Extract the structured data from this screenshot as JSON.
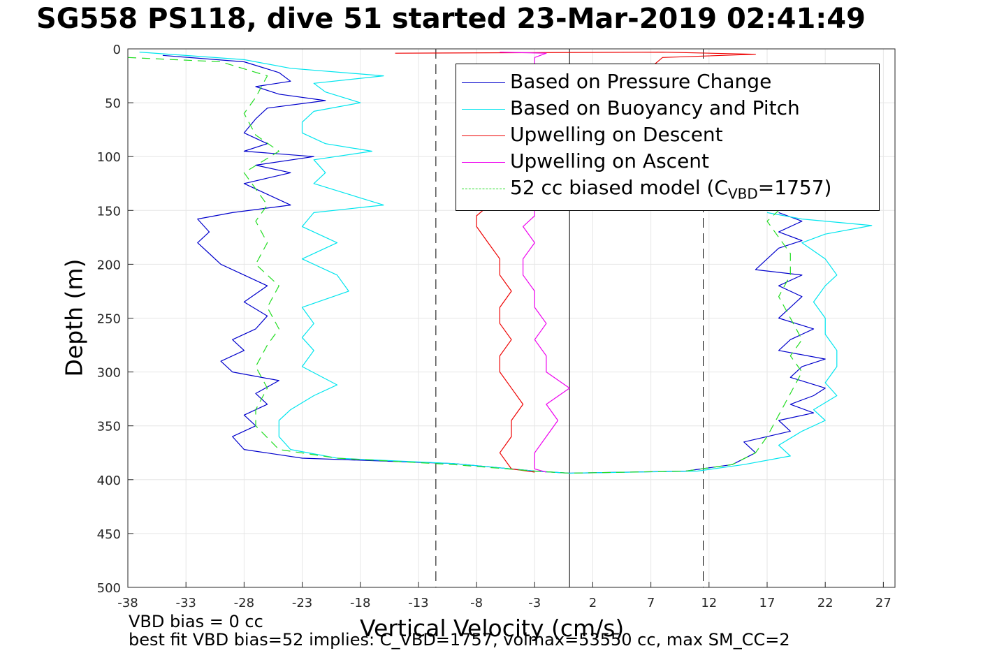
{
  "title": "SG558 PS118, dive 51 started 23-Mar-2019 02:41:49",
  "footer": {
    "line1": "VBD bias = 0 cc",
    "line2": "best fit VBD bias=52 implies: C_VBD=1757, volmax=53550 cc, max SM_CC=2"
  },
  "chart_data": {
    "type": "line",
    "xlabel": "Vertical Velocity (cm/s)",
    "ylabel": "Depth (m)",
    "xlim": [
      -38,
      28
    ],
    "ylim": [
      0,
      500
    ],
    "y_reversed": true,
    "grid": true,
    "xticks": [
      -38,
      -33,
      -28,
      -23,
      -18,
      -13,
      -8,
      -3,
      2,
      7,
      12,
      17,
      22,
      27
    ],
    "yticks": [
      0,
      50,
      100,
      150,
      200,
      250,
      300,
      350,
      400,
      450,
      500
    ],
    "legend_position": "top-right",
    "reference_lines": [
      {
        "x": -11.5,
        "style": "dashed",
        "color": "#000000"
      },
      {
        "x": 0,
        "style": "solid",
        "color": "#000000"
      },
      {
        "x": 11.5,
        "style": "dashed",
        "color": "#000000"
      }
    ],
    "series": [
      {
        "name": "Based on Pressure Change",
        "color": "#0000cc",
        "style": "solid",
        "points": [
          [
            -35,
            6
          ],
          [
            -28,
            12
          ],
          [
            -25,
            22
          ],
          [
            -24,
            30
          ],
          [
            -27,
            35
          ],
          [
            -25,
            42
          ],
          [
            -21,
            48
          ],
          [
            -26,
            55
          ],
          [
            -27,
            65
          ],
          [
            -28,
            78
          ],
          [
            -26,
            88
          ],
          [
            -28,
            95
          ],
          [
            -22,
            100
          ],
          [
            -27,
            108
          ],
          [
            -24,
            115
          ],
          [
            -28,
            125
          ],
          [
            -26,
            135
          ],
          [
            -24,
            145
          ],
          [
            -29,
            152
          ],
          [
            -32,
            158
          ],
          [
            -31,
            170
          ],
          [
            -32,
            180
          ],
          [
            -31,
            190
          ],
          [
            -30,
            200
          ],
          [
            -28,
            210
          ],
          [
            -26,
            220
          ],
          [
            -28,
            235
          ],
          [
            -26,
            248
          ],
          [
            -27,
            260
          ],
          [
            -29,
            270
          ],
          [
            -28,
            280
          ],
          [
            -30,
            290
          ],
          [
            -29,
            300
          ],
          [
            -25,
            308
          ],
          [
            -27,
            320
          ],
          [
            -26,
            330
          ],
          [
            -28,
            340
          ],
          [
            -27,
            350
          ],
          [
            -29,
            360
          ],
          [
            -28,
            372
          ],
          [
            -23,
            380
          ],
          [
            -10,
            385
          ],
          [
            -3,
            392
          ],
          [
            0,
            394
          ],
          [
            0,
            394
          ],
          [
            10,
            392
          ],
          [
            14,
            386
          ],
          [
            16,
            375
          ],
          [
            15,
            365
          ],
          [
            19,
            355
          ],
          [
            18,
            345
          ],
          [
            21,
            338
          ],
          [
            19,
            330
          ],
          [
            21,
            322
          ],
          [
            22,
            315
          ],
          [
            19,
            305
          ],
          [
            20,
            295
          ],
          [
            22,
            288
          ],
          [
            18,
            280
          ],
          [
            19,
            270
          ],
          [
            21,
            260
          ],
          [
            18,
            250
          ],
          [
            19,
            240
          ],
          [
            20,
            230
          ],
          [
            18,
            220
          ],
          [
            20,
            210
          ],
          [
            16,
            205
          ],
          [
            17,
            195
          ],
          [
            18,
            185
          ],
          [
            20,
            178
          ],
          [
            18,
            170
          ],
          [
            20,
            160
          ],
          [
            18,
            152
          ]
        ]
      },
      {
        "name": "Based on Buoyancy and Pitch",
        "color": "#00e5ee",
        "style": "solid",
        "points": [
          [
            -37,
            3
          ],
          [
            -28,
            10
          ],
          [
            -24,
            18
          ],
          [
            -16,
            25
          ],
          [
            -22,
            32
          ],
          [
            -21,
            40
          ],
          [
            -18,
            50
          ],
          [
            -22,
            58
          ],
          [
            -23,
            68
          ],
          [
            -23,
            78
          ],
          [
            -21,
            88
          ],
          [
            -17,
            95
          ],
          [
            -22,
            103
          ],
          [
            -21,
            115
          ],
          [
            -22,
            125
          ],
          [
            -19,
            135
          ],
          [
            -16,
            145
          ],
          [
            -22,
            152
          ],
          [
            -23,
            165
          ],
          [
            -20,
            180
          ],
          [
            -23,
            195
          ],
          [
            -20,
            210
          ],
          [
            -19,
            225
          ],
          [
            -23,
            240
          ],
          [
            -22,
            255
          ],
          [
            -23,
            268
          ],
          [
            -22,
            280
          ],
          [
            -23,
            295
          ],
          [
            -20,
            312
          ],
          [
            -22,
            322
          ],
          [
            -24,
            335
          ],
          [
            -25,
            345
          ],
          [
            -25,
            360
          ],
          [
            -24,
            372
          ],
          [
            -20,
            380
          ],
          [
            -10,
            385
          ],
          [
            -3,
            392
          ],
          [
            0,
            394
          ],
          [
            0,
            394
          ],
          [
            11,
            392
          ],
          [
            15,
            386
          ],
          [
            19,
            378
          ],
          [
            18,
            368
          ],
          [
            20,
            355
          ],
          [
            22,
            345
          ],
          [
            21,
            335
          ],
          [
            23,
            322
          ],
          [
            22,
            310
          ],
          [
            23,
            295
          ],
          [
            23,
            280
          ],
          [
            22,
            265
          ],
          [
            22,
            250
          ],
          [
            21,
            235
          ],
          [
            22,
            220
          ],
          [
            23,
            210
          ],
          [
            22,
            195
          ],
          [
            20,
            180
          ],
          [
            22,
            172
          ],
          [
            26,
            164
          ],
          [
            20,
            158
          ],
          [
            17,
            152
          ]
        ]
      },
      {
        "name": "Upwelling on Descent",
        "color": "#ee0000",
        "style": "solid",
        "points": [
          [
            -15,
            4
          ],
          [
            8,
            3
          ],
          [
            16,
            5
          ],
          [
            8,
            8
          ],
          [
            -8,
            155
          ],
          [
            -8,
            165
          ],
          [
            -7,
            180
          ],
          [
            -6,
            195
          ],
          [
            -6,
            210
          ],
          [
            -5,
            225
          ],
          [
            -6,
            240
          ],
          [
            -6,
            255
          ],
          [
            -5,
            270
          ],
          [
            -6,
            285
          ],
          [
            -6,
            300
          ],
          [
            -5,
            315
          ],
          [
            -4,
            330
          ],
          [
            -5,
            345
          ],
          [
            -5,
            360
          ],
          [
            -6,
            375
          ],
          [
            -5,
            390
          ],
          [
            -3,
            393
          ]
        ]
      },
      {
        "name": "Upwelling on Ascent",
        "color": "#ee00ee",
        "style": "solid",
        "points": [
          [
            -6,
            3
          ],
          [
            -2,
            4
          ],
          [
            -3,
            8
          ],
          [
            -3,
            155
          ],
          [
            -4,
            165
          ],
          [
            -3,
            180
          ],
          [
            -4,
            195
          ],
          [
            -4,
            210
          ],
          [
            -3,
            225
          ],
          [
            -3,
            240
          ],
          [
            -2,
            255
          ],
          [
            -3,
            270
          ],
          [
            -2,
            285
          ],
          [
            -2,
            300
          ],
          [
            0,
            315
          ],
          [
            -2,
            330
          ],
          [
            -1,
            345
          ],
          [
            -2,
            360
          ],
          [
            -3,
            375
          ],
          [
            -3,
            390
          ],
          [
            -2,
            393
          ]
        ]
      },
      {
        "name": "52 cc biased model (C",
        "name_sub": "VBD",
        "name_tail": "=1757)",
        "color": "#22dd22",
        "style": "dashed",
        "points": [
          [
            -38,
            8
          ],
          [
            -30,
            12
          ],
          [
            -26,
            25
          ],
          [
            -27,
            45
          ],
          [
            -28,
            60
          ],
          [
            -27,
            80
          ],
          [
            -25,
            95
          ],
          [
            -28,
            115
          ],
          [
            -27,
            130
          ],
          [
            -26,
            145
          ],
          [
            -27,
            160
          ],
          [
            -26,
            180
          ],
          [
            -27,
            200
          ],
          [
            -25,
            220
          ],
          [
            -26,
            240
          ],
          [
            -25,
            260
          ],
          [
            -26,
            275
          ],
          [
            -27,
            295
          ],
          [
            -26,
            315
          ],
          [
            -27,
            335
          ],
          [
            -27,
            350
          ],
          [
            -25,
            372
          ],
          [
            -20,
            380
          ],
          [
            -10,
            386
          ],
          [
            -3,
            392
          ],
          [
            0,
            394
          ],
          [
            0,
            394
          ],
          [
            10,
            392
          ],
          [
            14,
            386
          ],
          [
            16,
            375
          ],
          [
            17,
            360
          ],
          [
            18,
            340
          ],
          [
            19,
            320
          ],
          [
            20,
            300
          ],
          [
            19,
            285
          ],
          [
            20,
            270
          ],
          [
            19,
            250
          ],
          [
            18,
            230
          ],
          [
            19,
            210
          ],
          [
            19,
            190
          ],
          [
            18,
            175
          ],
          [
            17,
            160
          ],
          [
            18,
            150
          ]
        ]
      }
    ]
  }
}
